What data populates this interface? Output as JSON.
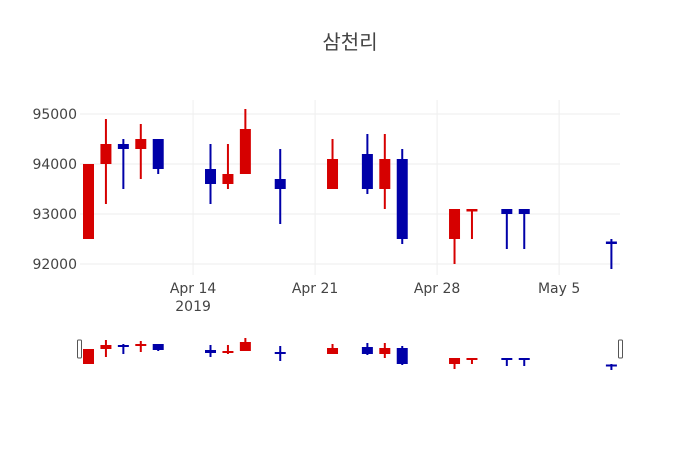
{
  "chart_data": {
    "type": "candlestick",
    "title": "삼천리",
    "xlabel": "",
    "ylabel": "",
    "ylim": [
      91800,
      95300
    ],
    "y_ticks": [
      92000,
      93000,
      94000,
      95000
    ],
    "y_tick_labels": [
      "92000",
      "93000",
      "94000",
      "95000"
    ],
    "x_ticks": [
      "2019-04-14",
      "2019-04-21",
      "2019-04-28",
      "2019-05-05"
    ],
    "x_tick_labels": [
      "Apr 14\n2019",
      "Apr 21",
      "Apr 28",
      "May 5"
    ],
    "grid": true,
    "rangeslider": true,
    "increasing_color": "#d60000",
    "decreasing_color": "#0000a8",
    "series": [
      {
        "name": "삼천리",
        "x": [
          "2019-04-08",
          "2019-04-09",
          "2019-04-10",
          "2019-04-11",
          "2019-04-12",
          "2019-04-15",
          "2019-04-16",
          "2019-04-17",
          "2019-04-19",
          "2019-04-22",
          "2019-04-24",
          "2019-04-25",
          "2019-04-26",
          "2019-04-29",
          "2019-04-30",
          "2019-05-02",
          "2019-05-03",
          "2019-05-08"
        ],
        "open": [
          92500,
          94000,
          94400,
          94300,
          94500,
          93900,
          93600,
          93800,
          93700,
          93500,
          94200,
          93500,
          94100,
          92500,
          93050,
          93100,
          93100,
          92450
        ],
        "high": [
          94000,
          94900,
          94500,
          94800,
          94500,
          94400,
          94400,
          95100,
          94300,
          94500,
          94600,
          94600,
          94300,
          93100,
          93100,
          93100,
          93100,
          92500
        ],
        "low": [
          92500,
          93200,
          93500,
          93700,
          93800,
          93200,
          93500,
          93800,
          92800,
          93500,
          93400,
          93100,
          92400,
          92000,
          92500,
          92300,
          92300,
          91900
        ],
        "close": [
          94000,
          94400,
          94300,
          94500,
          93900,
          93600,
          93800,
          94700,
          93500,
          94100,
          93500,
          94100,
          92500,
          93100,
          93100,
          93000,
          93000,
          92400
        ]
      }
    ]
  }
}
